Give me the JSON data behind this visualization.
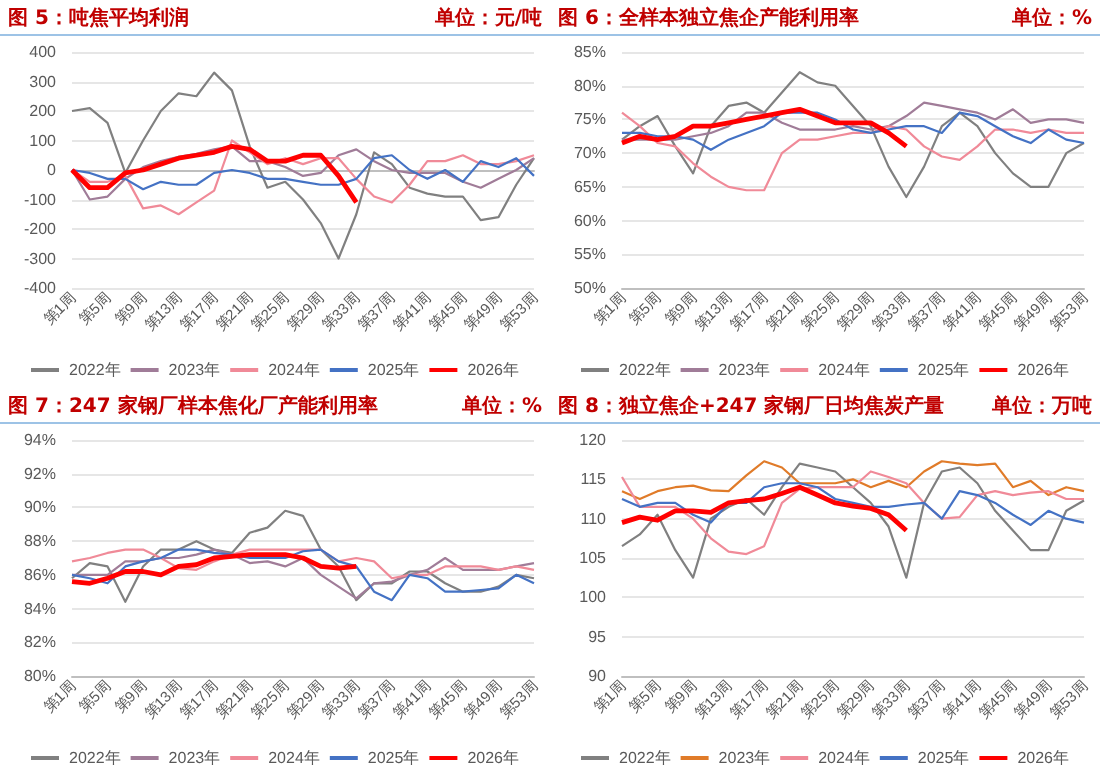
{
  "chart_data": [
    {
      "type": "line",
      "title": "图 5：吨焦平均利润",
      "subtitle": "单位：元/吨",
      "categories": [
        "第1周",
        null,
        "第5周",
        null,
        "第9周",
        null,
        "第13周",
        null,
        "第17周",
        null,
        "第21周",
        null,
        "第25周",
        null,
        "第29周",
        null,
        "第33周",
        null,
        "第37周",
        null,
        "第41周",
        null,
        "第45周",
        null,
        "第49周",
        null,
        "第53周"
      ],
      "ylim": [
        -400,
        400
      ],
      "yticks": [
        -400,
        -300,
        -200,
        -100,
        0,
        100,
        200,
        300,
        400
      ],
      "grid": "y",
      "legend": "bottom",
      "marker": "none",
      "series": [
        {
          "name": "2022年",
          "color": "#808080",
          "values": [
            200,
            210,
            160,
            -10,
            100,
            200,
            260,
            250,
            330,
            270,
            80,
            -60,
            -40,
            -100,
            -180,
            -300,
            -150,
            60,
            20,
            -60,
            -80,
            -90,
            -90,
            -170,
            -160,
            -50,
            40
          ]
        },
        {
          "name": "2023年",
          "color": "#a07c98",
          "values": [
            0,
            -100,
            -90,
            -30,
            10,
            30,
            45,
            55,
            70,
            80,
            30,
            30,
            10,
            -20,
            -10,
            50,
            70,
            30,
            0,
            -10,
            -10,
            -10,
            -40,
            -60,
            -30,
            0,
            40
          ]
        },
        {
          "name": "2024年",
          "color": "#f08a98",
          "values": [
            0,
            -40,
            -40,
            -20,
            -130,
            -120,
            -150,
            -110,
            -70,
            100,
            60,
            20,
            40,
            20,
            40,
            40,
            -30,
            -90,
            -110,
            -50,
            30,
            30,
            50,
            20,
            20,
            30,
            50
          ]
        },
        {
          "name": "2025年",
          "color": "#4472c4",
          "values": [
            0,
            -10,
            -30,
            -30,
            -65,
            -40,
            -50,
            -50,
            -10,
            0,
            -10,
            -30,
            -30,
            -40,
            -50,
            -50,
            -30,
            40,
            50,
            0,
            -30,
            0,
            -40,
            30,
            10,
            40,
            -20
          ]
        },
        {
          "name": "2026年",
          "color": "#ff0000",
          "values": [
            0,
            -60,
            -60,
            -10,
            0,
            20,
            40,
            50,
            60,
            80,
            70,
            30,
            30,
            50,
            50,
            -20,
            -110,
            null,
            null,
            null,
            null,
            null,
            null,
            null,
            null,
            null,
            null
          ]
        }
      ]
    },
    {
      "type": "line",
      "title": "图 6：全样本独立焦企产能利用率",
      "subtitle": "单位：%",
      "categories": [
        "第1周",
        null,
        "第5周",
        null,
        "第9周",
        null,
        "第13周",
        null,
        "第17周",
        null,
        "第21周",
        null,
        "第25周",
        null,
        "第29周",
        null,
        "第33周",
        null,
        "第37周",
        null,
        "第41周",
        null,
        "第45周",
        null,
        "第49周",
        null,
        "第53周"
      ],
      "ylim": [
        50,
        85
      ],
      "yticks": [
        {
          "value": 50,
          "label": "50%"
        },
        {
          "value": 55,
          "label": "55%"
        },
        {
          "value": 60,
          "label": "60%"
        },
        {
          "value": 65,
          "label": "65%"
        },
        {
          "value": 70,
          "label": "70%"
        },
        {
          "value": 75,
          "label": "75%"
        },
        {
          "value": 80,
          "label": "80%"
        },
        {
          "value": 85,
          "label": "85%"
        }
      ],
      "grid": "y",
      "legend": "bottom",
      "marker": "none",
      "series": [
        {
          "name": "2022年",
          "color": "#808080",
          "values": [
            72,
            74,
            75.5,
            71,
            67,
            74,
            77,
            77.5,
            76,
            79,
            82,
            80.5,
            80,
            77,
            74,
            68,
            63.5,
            68,
            74,
            76,
            74,
            70,
            67,
            65,
            65,
            70,
            71.5
          ]
        },
        {
          "name": "2023年",
          "color": "#a07c98",
          "values": [
            72,
            72,
            72,
            72,
            72.5,
            73,
            74,
            76,
            76,
            74.5,
            73.5,
            73.5,
            73.5,
            74,
            73.5,
            74,
            75.5,
            77.5,
            77,
            76.5,
            76,
            75,
            76.5,
            74.5,
            75,
            75,
            74.5
          ]
        },
        {
          "name": "2024年",
          "color": "#f08a98",
          "values": [
            76,
            74,
            71.5,
            71,
            68.5,
            66.5,
            65,
            64.5,
            64.5,
            70,
            72,
            72,
            72.5,
            73,
            73,
            74,
            73.5,
            71,
            69.5,
            69,
            71,
            73.5,
            73.5,
            73,
            73.5,
            73,
            73
          ]
        },
        {
          "name": "2025年",
          "color": "#4472c4",
          "values": [
            73,
            73,
            72.5,
            72.5,
            72,
            70.5,
            72,
            73,
            74,
            76,
            76,
            76,
            75,
            73.5,
            73,
            73.5,
            74,
            74,
            73,
            76,
            75.5,
            74,
            72.5,
            71.5,
            73.5,
            72,
            71.5
          ]
        },
        {
          "name": "2026年",
          "color": "#ff0000",
          "values": [
            71.5,
            72.5,
            72,
            72.5,
            74,
            74,
            74.5,
            75,
            75.5,
            76,
            76.5,
            75.5,
            74.5,
            74.5,
            74.5,
            73,
            71,
            null,
            null,
            null,
            null,
            null,
            null,
            null,
            null,
            null,
            null
          ]
        }
      ]
    },
    {
      "type": "line",
      "title": "图 7：247 家钢厂样本焦化厂产能利用率",
      "subtitle": "单位：%",
      "categories": [
        "第1周",
        null,
        "第5周",
        null,
        "第9周",
        null,
        "第13周",
        null,
        "第17周",
        null,
        "第21周",
        null,
        "第25周",
        null,
        "第29周",
        null,
        "第33周",
        null,
        "第37周",
        null,
        "第41周",
        null,
        "第45周",
        null,
        "第49周",
        null,
        "第53周"
      ],
      "ylim": [
        80,
        94
      ],
      "yticks": [
        {
          "value": 80,
          "label": "80%"
        },
        {
          "value": 82,
          "label": "82%"
        },
        {
          "value": 84,
          "label": "84%"
        },
        {
          "value": 86,
          "label": "86%"
        },
        {
          "value": 88,
          "label": "88%"
        },
        {
          "value": 90,
          "label": "90%"
        },
        {
          "value": 92,
          "label": "92%"
        },
        {
          "value": 94,
          "label": "94%"
        }
      ],
      "grid": "y",
      "legend": "bottom",
      "marker": "none",
      "series": [
        {
          "name": "2022年",
          "color": "#808080",
          "values": [
            85.8,
            86.7,
            86.5,
            84.4,
            86.5,
            87.5,
            87.5,
            88,
            87.5,
            87.3,
            88.5,
            88.8,
            89.8,
            89.5,
            87.5,
            86.5,
            84.5,
            85.5,
            85.5,
            86.2,
            86.2,
            85.5,
            85,
            85,
            85.3,
            86,
            85.8
          ]
        },
        {
          "name": "2023年",
          "color": "#a07c98",
          "values": [
            86,
            86,
            86,
            86.8,
            86.8,
            87,
            87,
            87.2,
            87.5,
            87.2,
            86.7,
            86.8,
            86.5,
            87,
            86,
            85.3,
            84.6,
            85.5,
            85.6,
            86,
            86.3,
            87,
            86.3,
            86.3,
            86.3,
            86.5,
            86.7
          ]
        },
        {
          "name": "2024年",
          "color": "#f08a98",
          "values": [
            86.8,
            87,
            87.3,
            87.5,
            87.5,
            87,
            86.4,
            86.3,
            86.8,
            87.2,
            87.5,
            87.5,
            87.5,
            87.5,
            87.5,
            86.8,
            87,
            86.8,
            85.8,
            86,
            86,
            86.5,
            86.5,
            86.5,
            86.3,
            86.5,
            86.3
          ]
        },
        {
          "name": "2025年",
          "color": "#4472c4",
          "values": [
            86,
            85.8,
            85.5,
            86.5,
            86.8,
            87,
            87.5,
            87.5,
            87.3,
            87.2,
            87,
            87,
            87,
            87.4,
            87.5,
            86.8,
            86.5,
            85,
            84.5,
            86,
            85.8,
            85,
            85,
            85.1,
            85.2,
            86,
            85.5
          ]
        },
        {
          "name": "2026年",
          "color": "#ff0000",
          "values": [
            85.6,
            85.5,
            85.8,
            86.2,
            86.2,
            86,
            86.5,
            86.6,
            87,
            87.1,
            87.2,
            87.2,
            87.2,
            87,
            86.5,
            86.4,
            86.5,
            null,
            null,
            null,
            null,
            null,
            null,
            null,
            null,
            null,
            null
          ]
        }
      ]
    },
    {
      "type": "line",
      "title": "图 8：独立焦企+247 家钢厂日均焦炭产量",
      "subtitle": "单位：万吨",
      "categories": [
        "第1周",
        null,
        "第5周",
        null,
        "第9周",
        null,
        "第13周",
        null,
        "第17周",
        null,
        "第21周",
        null,
        "第25周",
        null,
        "第29周",
        null,
        "第33周",
        null,
        "第37周",
        null,
        "第41周",
        null,
        "第45周",
        null,
        "第49周",
        null,
        "第53周"
      ],
      "ylim": [
        90,
        120
      ],
      "yticks": [
        90,
        95,
        100,
        105,
        110,
        115,
        120
      ],
      "grid": "y",
      "legend": "bottom",
      "marker": "none",
      "series": [
        {
          "name": "2022年",
          "color": "#808080",
          "values": [
            106.5,
            108,
            110.5,
            106,
            102.5,
            110,
            111.5,
            112.5,
            110.5,
            114,
            117,
            116.5,
            116,
            114,
            112,
            109,
            102.5,
            112,
            116,
            116.5,
            114.5,
            111,
            108.5,
            106,
            106,
            111,
            112.3
          ]
        },
        {
          "name": "2023年",
          "color": "#e07b29",
          "values": [
            113.5,
            112.5,
            113.5,
            114,
            114.2,
            113.6,
            113.5,
            115.5,
            117.3,
            116.5,
            114.5,
            114.5,
            114.5,
            115,
            114,
            114.8,
            114,
            116,
            117.3,
            117,
            116.8,
            117,
            114,
            114.8,
            113,
            114,
            113.5
          ]
        },
        {
          "name": "2024年",
          "color": "#f08a98",
          "values": [
            115.3,
            111.5,
            111.5,
            111.5,
            110,
            107.5,
            105.8,
            105.5,
            106.5,
            112,
            113.8,
            114,
            114,
            114,
            116,
            115.3,
            114.5,
            112,
            110,
            110.2,
            113,
            113.5,
            113,
            113.3,
            113.5,
            112.5,
            112.5
          ]
        },
        {
          "name": "2025年",
          "color": "#4472c4",
          "values": [
            112.5,
            111.5,
            112,
            112,
            110.5,
            109.5,
            112,
            112,
            114,
            114.5,
            114.5,
            114,
            112.5,
            112,
            111.5,
            111.5,
            111.8,
            112,
            110,
            113.5,
            113,
            112,
            110.5,
            109.2,
            111,
            110,
            109.5
          ]
        },
        {
          "name": "2026年",
          "color": "#ff0000",
          "values": [
            109.5,
            110.2,
            109.8,
            111,
            111,
            110.8,
            112,
            112.3,
            112.5,
            113.2,
            114,
            113,
            112,
            111.6,
            111.3,
            110.5,
            108.5,
            null,
            null,
            null,
            null,
            null,
            null,
            null,
            null,
            null,
            null
          ]
        }
      ]
    }
  ]
}
